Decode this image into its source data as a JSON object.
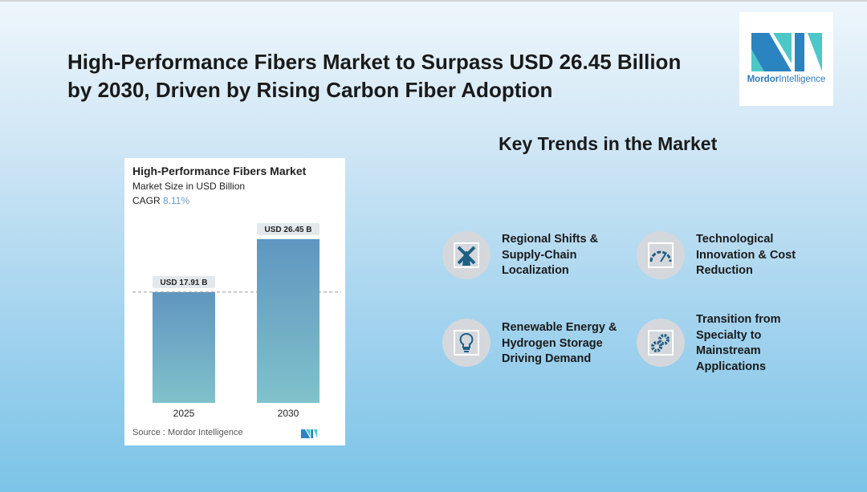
{
  "header": {
    "title": "High-Performance Fibers Market to Surpass USD 26.45 Billion by 2030, Driven by Rising Carbon Fiber Adoption"
  },
  "logo": {
    "brand1": "Mordor",
    "brand2": "Intelligence"
  },
  "chart_data": {
    "type": "bar",
    "title": "High-Performance Fibers Market",
    "subtitle": "Market Size in USD Billion",
    "cagr_label": "CAGR",
    "cagr_value": "8.11%",
    "categories": [
      "2025",
      "2030"
    ],
    "values": [
      17.91,
      26.45
    ],
    "data_labels": [
      "USD 17.91 B",
      "USD 26.45 B"
    ],
    "source_label": "Source :",
    "source": "Mordor Intelligence",
    "ylim": [
      0,
      26.45
    ]
  },
  "trends": {
    "heading": "Key Trends in the Market",
    "items": [
      {
        "label": "Regional Shifts & Supply-Chain Localization",
        "icon": "windmill-icon"
      },
      {
        "label": "Technological Innovation & Cost Reduction",
        "icon": "gauge-icon"
      },
      {
        "label": "Renewable Energy & Hydrogen Storage Driving Demand",
        "icon": "lightbulb-icon"
      },
      {
        "label": "Transition from Specialty to Mainstream Applications",
        "icon": "gears-icon"
      }
    ]
  },
  "colors": {
    "icon": "#1f5f84",
    "bar_top": "#5f96c0",
    "bar_bottom": "#7fc0cc"
  }
}
